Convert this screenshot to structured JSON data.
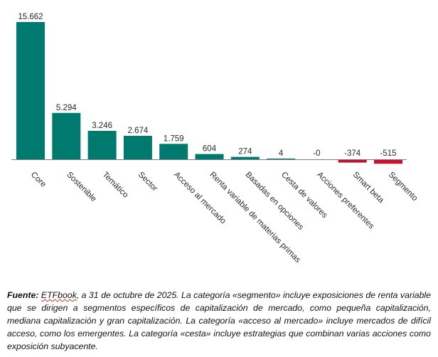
{
  "chart_data": {
    "type": "bar",
    "categories": [
      "Core",
      "Sostenible",
      "Temático",
      "Sector",
      "Acceso al mercado",
      "Renta variable de materias primas",
      "Basadas en opciones",
      "Cesta de valores",
      "Acciones preferentes",
      "Smart beta",
      "Segmento"
    ],
    "values": [
      15662,
      5294,
      3246,
      2674,
      1759,
      604,
      274,
      4,
      -0.1,
      -374,
      -515
    ],
    "value_labels": [
      "15.662",
      "5.294",
      "3.246",
      "2.674",
      "1.759",
      "604",
      "274",
      "4",
      "-0",
      "-374",
      "-515"
    ],
    "colors": {
      "positive": "#007a6e",
      "negative": "#c8102e"
    },
    "title": "",
    "xlabel": "",
    "ylabel": "",
    "grid": false
  },
  "caption": {
    "bold": "Fuente:",
    "source": "ETFbook",
    "text": ", a 31 de octubre de 2025. La categoría «segmento» incluye exposiciones de renta variable que se dirigen a segmentos específicos de capitalización de mercado, como pequeña capitalización, mediana capitalización y gran capitalización. La categoría «acceso al mercado» incluye mercados de difícil acceso, como los emergentes. La categoría «cesta» incluye estrategias que combinan varias acciones como exposición subyacente."
  }
}
